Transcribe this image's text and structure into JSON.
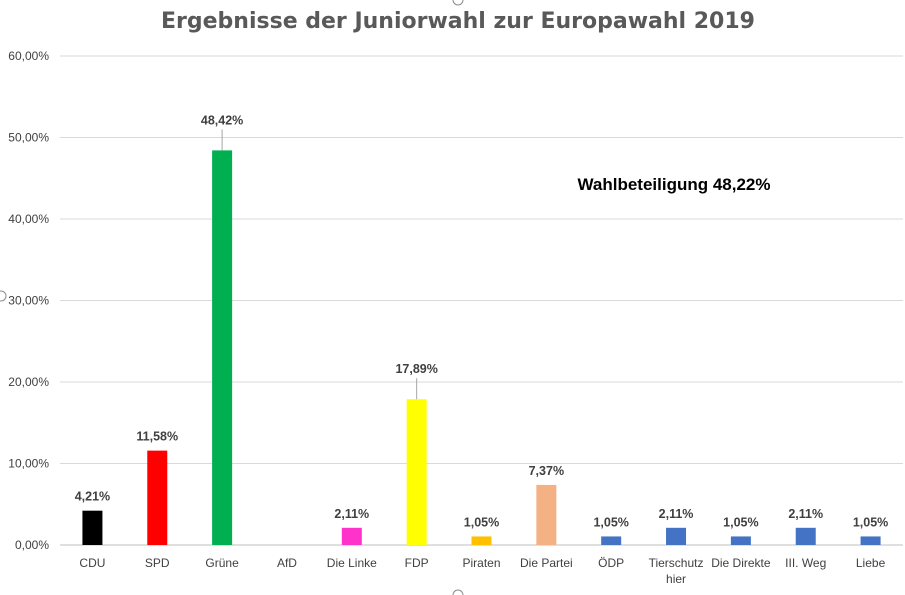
{
  "chart_data": {
    "type": "bar",
    "title": "Ergebnisse der Juniorwahl zur Europawahl 2019",
    "xlabel": "",
    "ylabel": "",
    "ylim": [
      0,
      60
    ],
    "yticks": [
      "0,00%",
      "10,00%",
      "20,00%",
      "30,00%",
      "40,00%",
      "50,00%",
      "60,00%"
    ],
    "grid": true,
    "legend": "none",
    "annotation": "Wahlbeteiligung 48,22%",
    "categories": [
      "CDU",
      "SPD",
      "Grüne",
      "AfD",
      "Die Linke",
      "FDP",
      "Piraten",
      "Die Partei",
      "ÖDP",
      "Tierschutz hier",
      "Die Direkte",
      "III. Weg",
      "Liebe"
    ],
    "category_lines": [
      [
        "CDU"
      ],
      [
        "SPD"
      ],
      [
        "Grüne"
      ],
      [
        "AfD"
      ],
      [
        "Die Linke"
      ],
      [
        "FDP"
      ],
      [
        "Piraten"
      ],
      [
        "Die Partei"
      ],
      [
        "ÖDP"
      ],
      [
        "Tierschutz",
        "hier"
      ],
      [
        "Die Direkte"
      ],
      [
        "III. Weg"
      ],
      [
        "Liebe"
      ]
    ],
    "values": [
      4.21,
      11.58,
      48.42,
      0,
      2.11,
      17.89,
      1.05,
      7.37,
      1.05,
      2.11,
      1.05,
      2.11,
      1.05
    ],
    "labels": [
      "4,21%",
      "11,58%",
      "48,42%",
      "",
      "2,11%",
      "17,89%",
      "1,05%",
      "7,37%",
      "1,05%",
      "2,11%",
      "1,05%",
      "2,11%",
      "1,05%"
    ],
    "colors": [
      "#000000",
      "#ff0000",
      "#00b050",
      "#4472c4",
      "#ff33cc",
      "#ffff00",
      "#ffc000",
      "#f4b183",
      "#4472c4",
      "#4472c4",
      "#4472c4",
      "#4472c4",
      "#4472c4"
    ]
  }
}
